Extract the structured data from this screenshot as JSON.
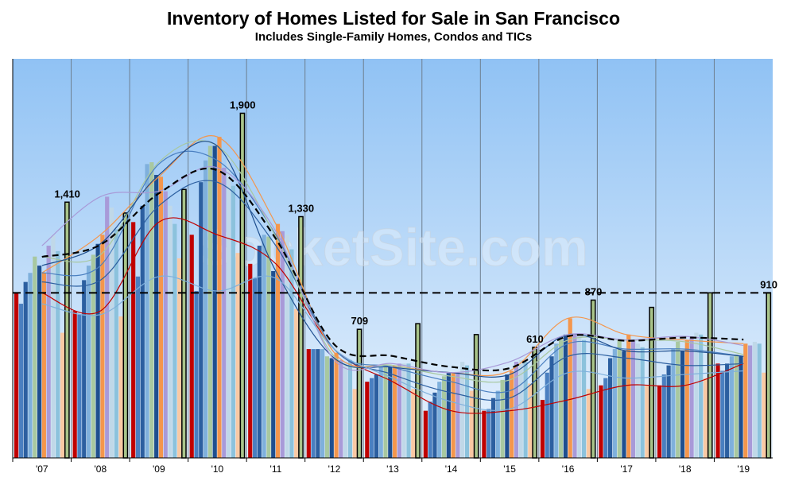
{
  "header": {
    "title": "Inventory of Homes Listed for Sale in San Francisco",
    "subtitle": "Includes Single-Family Homes, Condos and TICs"
  },
  "watermark": "SocketSite.com",
  "colors": {
    "bg_top": "#90c2f4",
    "bg_bottom": "#e9f3fd",
    "months": [
      "#c00000",
      "#4a7fc0",
      "#2c5fa0",
      "#7fb0dc",
      "#a8c8a0",
      "#1f4f8f",
      "#f4964c",
      "#a89ad8",
      "#c0d8e8",
      "#8cc2dc",
      "#f9c9a4"
    ],
    "current_bar_fill": "#a9c48a",
    "current_bar_stroke": "#000000",
    "reference_line": "#000000"
  },
  "chart_data": {
    "type": "bar",
    "title": "Inventory of Homes Listed for Sale in San Francisco",
    "subtitle": "Includes Single-Family Homes, Condos and TICs",
    "categories": [
      "'07",
      "'08",
      "'09",
      "'10",
      "'11",
      "'12",
      "'13",
      "'14",
      "'15",
      "'16",
      "'17",
      "'18",
      "'19"
    ],
    "ylim": [
      0,
      2200
    ],
    "grid": false,
    "legend": "none",
    "reference_value": 910,
    "series": [
      {
        "values": [
          910,
          810,
          1300,
          1230,
          1070,
          600,
          420,
          260,
          260,
          320,
          400,
          400,
          520
        ]
      },
      {
        "values": [
          850,
          790,
          1000,
          920,
          990,
          600,
          440,
          310,
          270,
          470,
          440,
          460,
          480
        ]
      },
      {
        "values": [
          970,
          980,
          1390,
          1520,
          1170,
          600,
          460,
          360,
          330,
          560,
          550,
          510,
          520
        ]
      },
      {
        "values": [
          1020,
          1060,
          1620,
          1640,
          1230,
          600,
          500,
          420,
          370,
          630,
          600,
          600,
          560
        ]
      },
      {
        "values": [
          1110,
          1120,
          1630,
          1720,
          1220,
          560,
          510,
          450,
          430,
          650,
          650,
          640,
          570
        ]
      },
      {
        "values": [
          1060,
          1180,
          1560,
          1720,
          1030,
          550,
          500,
          470,
          460,
          680,
          590,
          590,
          560
        ]
      },
      {
        "values": [
          1020,
          1230,
          1550,
          1770,
          1290,
          580,
          510,
          470,
          480,
          770,
          680,
          650,
          630
        ]
      },
      {
        "values": [
          1170,
          1440,
          1470,
          1600,
          1250,
          540,
          520,
          470,
          530,
          680,
          650,
          670,
          620
        ]
      },
      {
        "values": [
          1230,
          1380,
          1390,
          1660,
          1230,
          530,
          520,
          530,
          540,
          670,
          630,
          690,
          640
        ]
      },
      {
        "values": [
          1140,
          1260,
          1290,
          1500,
          1150,
          540,
          520,
          510,
          530,
          650,
          610,
          680,
          630
        ]
      },
      {
        "values": [
          690,
          780,
          1100,
          1130,
          820,
          380,
          380,
          370,
          410,
          380,
          400,
          440,
          470
        ]
      },
      {
        "values": [
          1410,
          1350,
          1480,
          1900,
          1330,
          709,
          740,
          680,
          610,
          870,
          830,
          910,
          910
        ]
      }
    ],
    "data_labels": [
      {
        "label": "1,410",
        "category": "'07"
      },
      {
        "label": "1,900",
        "category": "'10"
      },
      {
        "label": "1,330",
        "category": "'11"
      },
      {
        "label": "709",
        "category": "'12"
      },
      {
        "label": "610",
        "category": "'15"
      },
      {
        "label": "870",
        "category": "'16"
      },
      {
        "label": "910",
        "category": "'19"
      }
    ]
  }
}
